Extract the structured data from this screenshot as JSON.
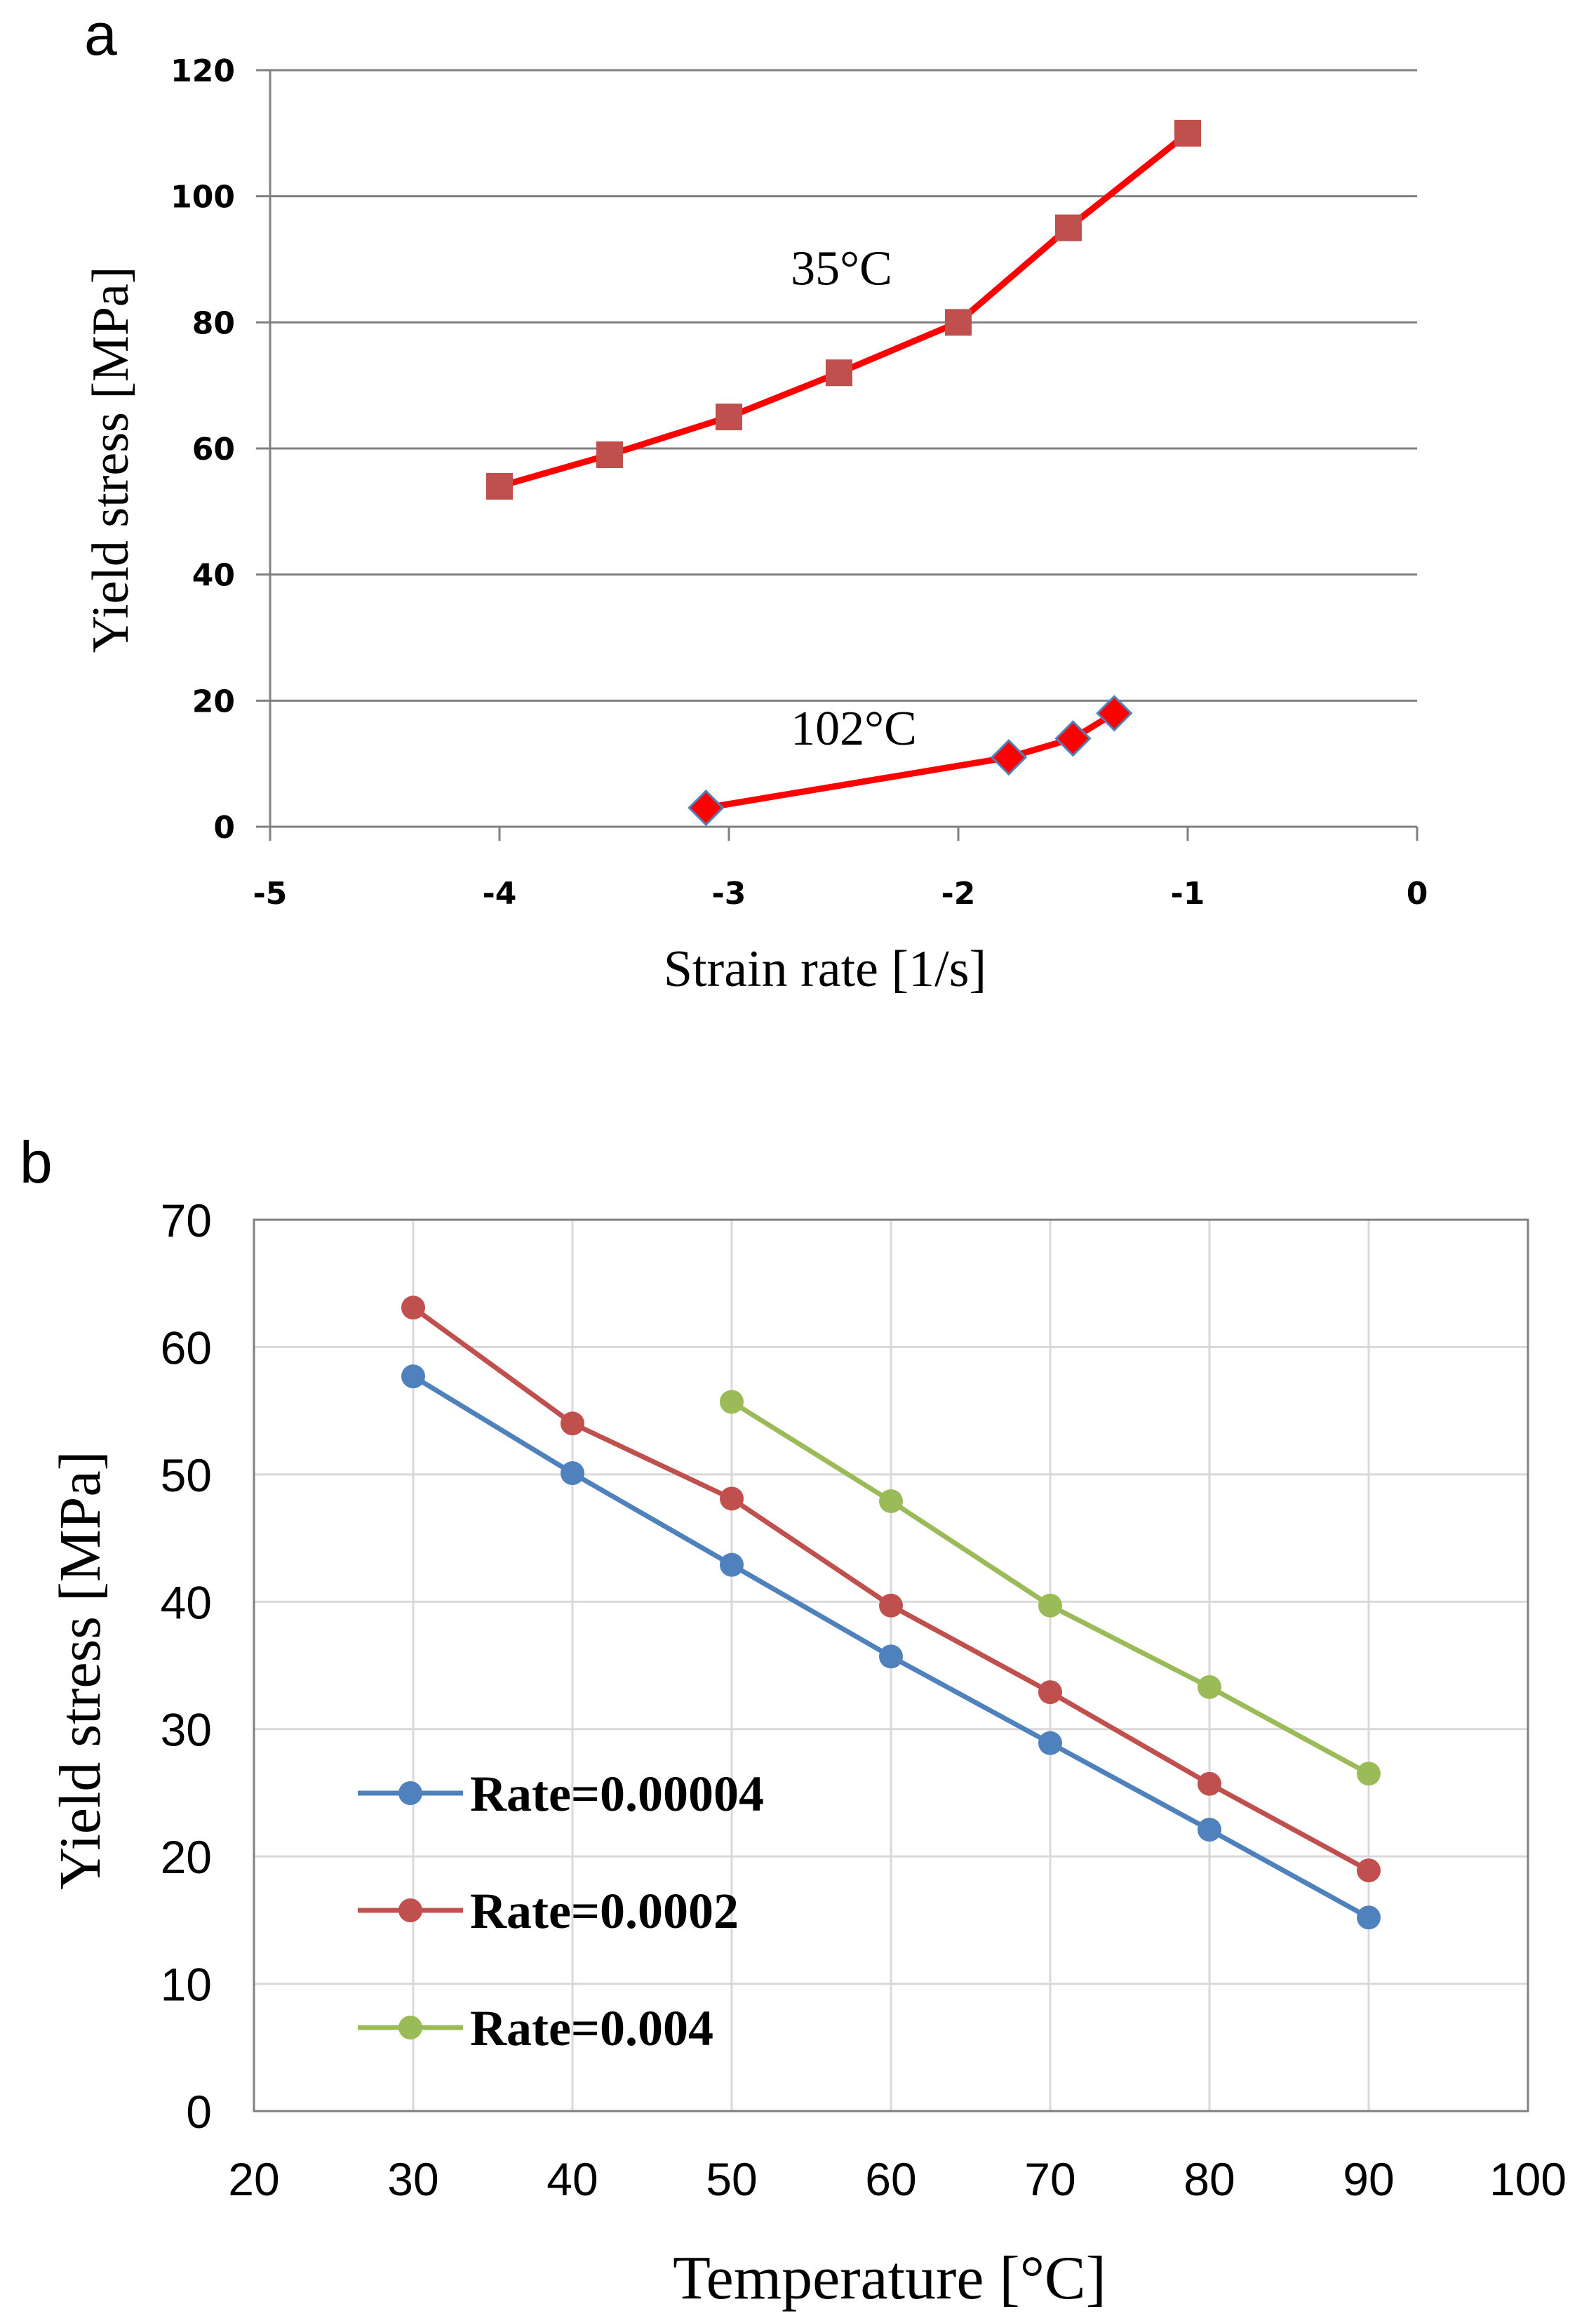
{
  "colors": {
    "red_line": "#ff0000",
    "square_marker": "#c0504d",
    "diamond_marker": "#ff0000",
    "diamond_edge": "#4f81bd",
    "blue": "#4f81bd",
    "red": "#c0504d",
    "green": "#9bbb59",
    "grid": "#808080",
    "grid_light": "#d9d9d9"
  },
  "panel_a": {
    "label": "a"
  },
  "panel_b": {
    "label": "b"
  },
  "chart_data": [
    {
      "type": "line",
      "panel": "a",
      "xlabel": "Strain rate [1/s]",
      "ylabel": "Yield stress [MPa]",
      "xlim": [
        -5,
        0
      ],
      "ylim": [
        0,
        120
      ],
      "xticks": [
        -5,
        -4,
        -3,
        -2,
        -1,
        0
      ],
      "yticks": [
        0,
        20,
        40,
        60,
        80,
        100,
        120
      ],
      "grid": "horizontal",
      "series": [
        {
          "name": "35°C",
          "marker": "square",
          "x": [
            -4,
            -3.52,
            -3,
            -2.52,
            -2,
            -1.52,
            -1
          ],
          "y": [
            54,
            59,
            65,
            72,
            80,
            95,
            110
          ]
        },
        {
          "name": "102°C",
          "marker": "diamond",
          "x": [
            -3.1,
            -1.78,
            -1.5,
            -1.32
          ],
          "y": [
            3,
            11,
            14,
            18
          ]
        }
      ],
      "annotations": [
        {
          "text": "35°C",
          "x": -2.7,
          "y": 86
        },
        {
          "text": "102°C",
          "x": -2.7,
          "y": 13
        }
      ]
    },
    {
      "type": "line",
      "panel": "b",
      "xlabel": "Temperature [°C]",
      "ylabel": "Yield stress [MPa]",
      "xlim": [
        20,
        100
      ],
      "ylim": [
        0,
        70
      ],
      "xticks": [
        20,
        30,
        40,
        50,
        60,
        70,
        80,
        90,
        100
      ],
      "yticks": [
        0,
        10,
        20,
        30,
        40,
        50,
        60,
        70
      ],
      "grid": "both",
      "legend_position": "bottom-left",
      "series": [
        {
          "name": "Rate=0.00004",
          "color": "#4f81bd",
          "x": [
            30,
            40,
            50,
            60,
            70,
            80,
            90
          ],
          "y": [
            57.7,
            50.1,
            42.9,
            35.7,
            28.9,
            22.1,
            15.2
          ]
        },
        {
          "name": "Rate=0.0002",
          "color": "#c0504d",
          "x": [
            30,
            40,
            50,
            60,
            70,
            80,
            90
          ],
          "y": [
            63.1,
            54.0,
            48.1,
            39.7,
            32.9,
            25.7,
            18.9
          ]
        },
        {
          "name": "Rate=0.004",
          "color": "#9bbb59",
          "x": [
            50,
            60,
            70,
            80,
            90
          ],
          "y": [
            55.7,
            47.9,
            39.7,
            33.3,
            26.5
          ]
        }
      ]
    }
  ]
}
